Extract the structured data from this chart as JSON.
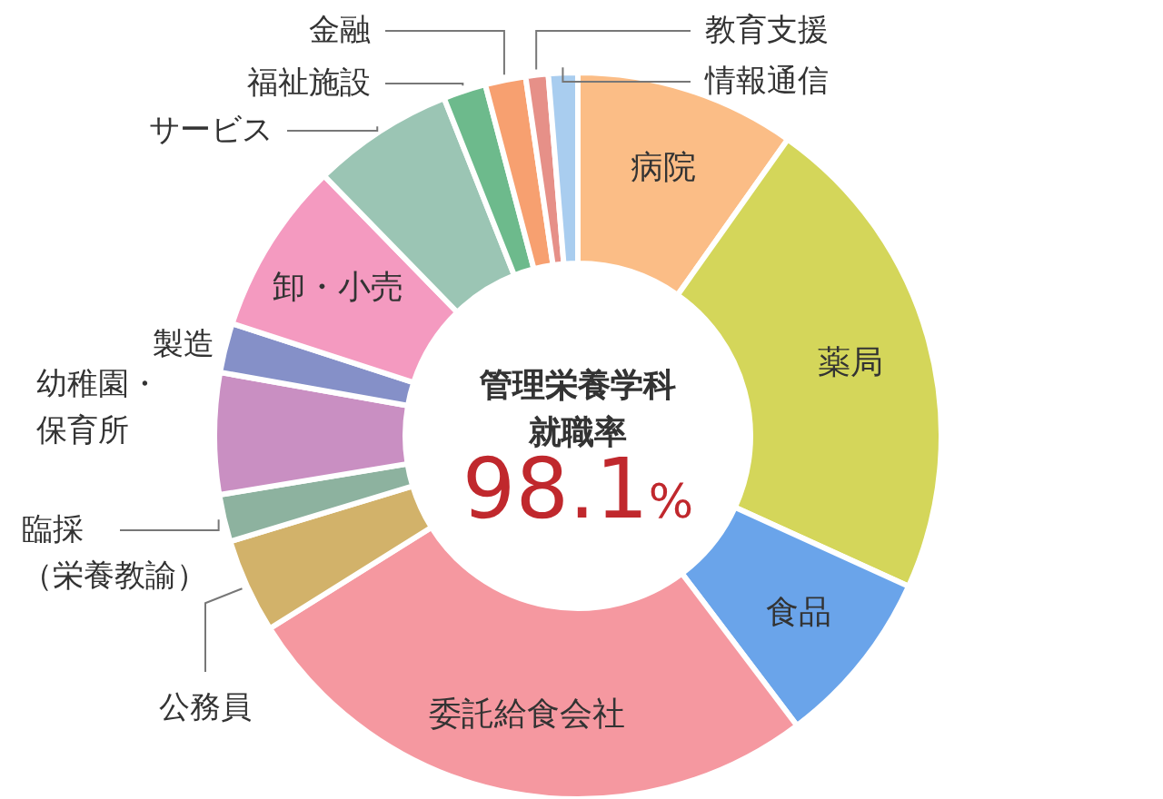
{
  "chart_data": {
    "type": "donut",
    "categories": [
      "病院",
      "薬局",
      "食品",
      "委託給食会社",
      "公務員",
      "臨採（栄養教諭）",
      "幼稚園・保育所",
      "製造",
      "卸・小売",
      "サービス",
      "福祉施設",
      "金融",
      "教育支援",
      "情報通信"
    ],
    "values": [
      9.8,
      22.0,
      7.9,
      26.4,
      4.2,
      2.1,
      5.4,
      2.2,
      7.7,
      6.3,
      1.9,
      1.8,
      1.0,
      1.3
    ],
    "colors": [
      "#fbbd86",
      "#d4d65a",
      "#6aa4ea",
      "#f598a0",
      "#d2b26a",
      "#8db29f",
      "#c98fc2",
      "#8590c8",
      "#f49ac0",
      "#9bc5b4",
      "#6dba8c",
      "#f7a070",
      "#e69088",
      "#a9cdef"
    ],
    "annotations": [
      "管理栄養学科",
      "就職率",
      "98.1%"
    ]
  }
}
